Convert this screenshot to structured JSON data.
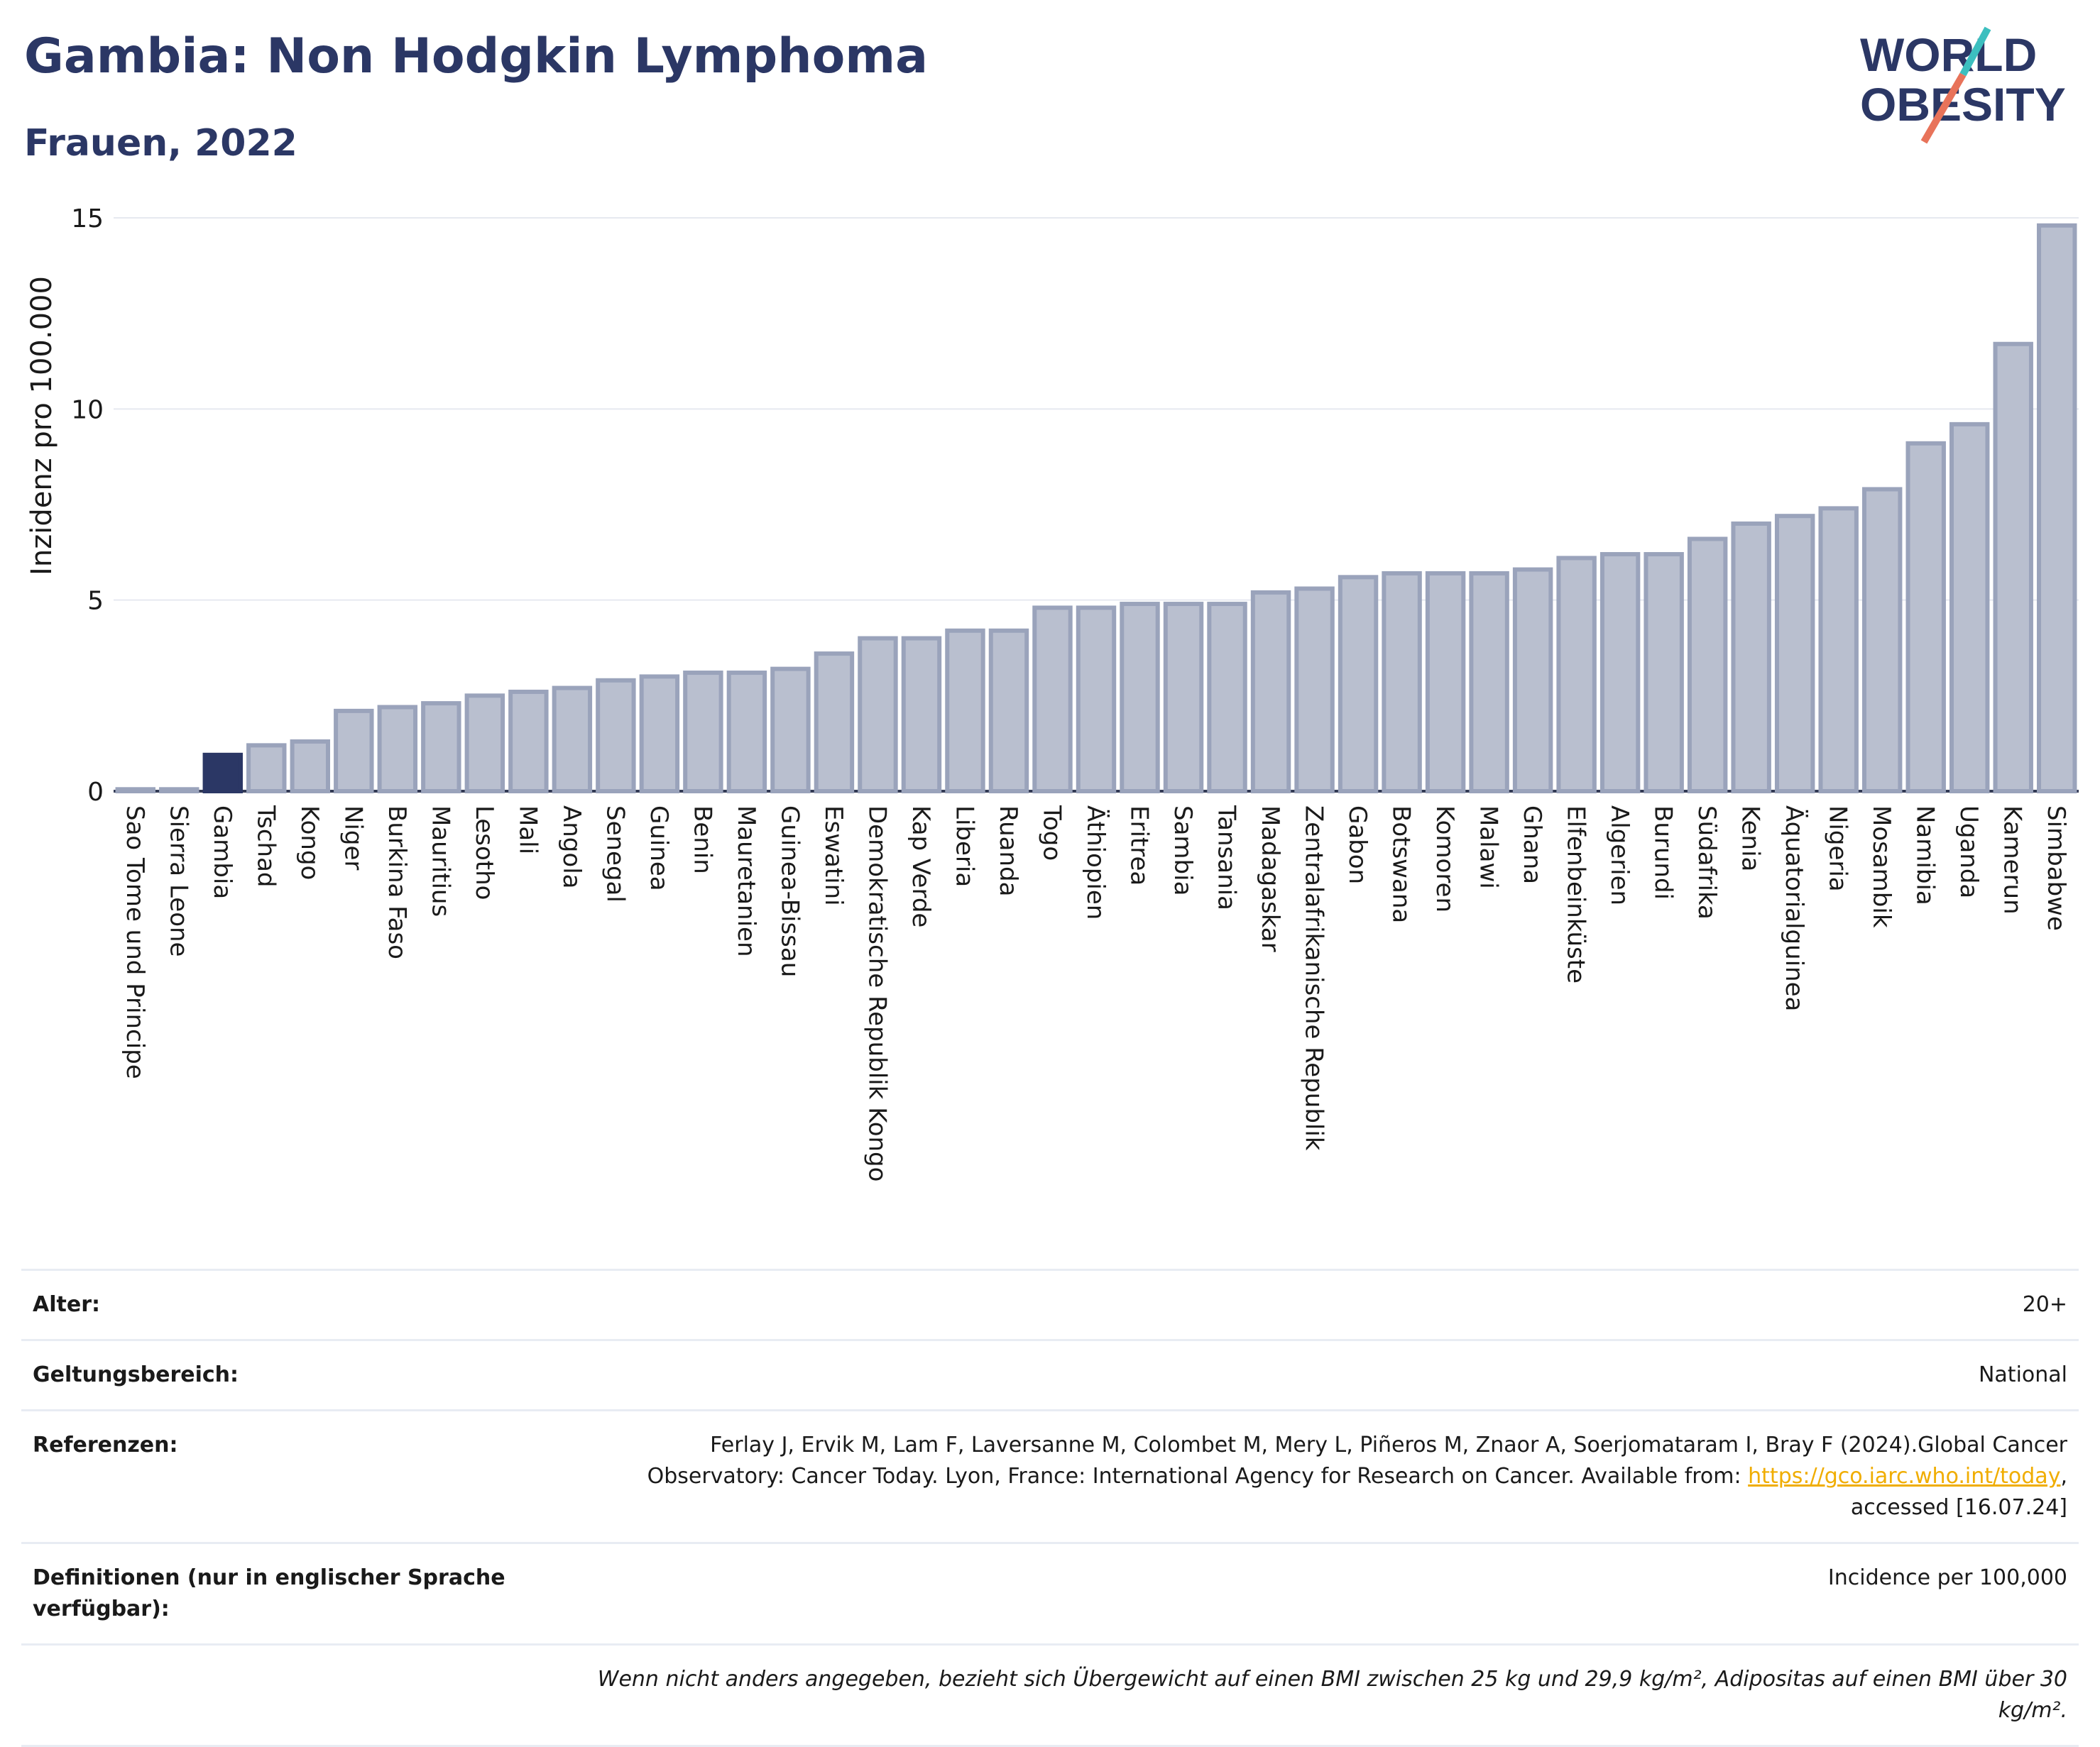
{
  "header": {
    "title": "Gambia: Non Hodgkin Lymphoma",
    "subtitle": "Frauen, 2022"
  },
  "logo": {
    "line1": "WORLD",
    "line2": "OBESITY"
  },
  "chart_data": {
    "type": "bar",
    "title": "Gambia: Non Hodgkin Lymphoma",
    "subtitle": "Frauen, 2022",
    "ylabel": "Inzidenz pro 100.000",
    "ylim": [
      0,
      15
    ],
    "yticks": [
      0,
      5,
      10,
      15
    ],
    "grid": true,
    "highlight": "Gambia",
    "colors": {
      "bar": "#b9bfcf",
      "bar_border": "#9aa3bb",
      "highlight": "#2b3765"
    },
    "categories": [
      "Sao Tome und Principe",
      "Sierra Leone",
      "Gambia",
      "Tschad",
      "Kongo",
      "Niger",
      "Burkina Faso",
      "Mauritius",
      "Lesotho",
      "Mali",
      "Angola",
      "Senegal",
      "Guinea",
      "Benin",
      "Mauretanien",
      "Guinea-Bissau",
      "Eswatini",
      "Demokratische Republik Kongo",
      "Kap Verde",
      "Liberia",
      "Ruanda",
      "Togo",
      "Äthiopien",
      "Eritrea",
      "Sambia",
      "Tansania",
      "Madagaskar",
      "Zentralafrikanische Republik",
      "Gabon",
      "Botswana",
      "Komoren",
      "Malawi",
      "Ghana",
      "Elfenbeinküste",
      "Algerien",
      "Burundi",
      "Südafrika",
      "Kenia",
      "Äquatorialguinea",
      "Nigeria",
      "Mosambik",
      "Namibia",
      "Uganda",
      "Kamerun",
      "Simbabwe"
    ],
    "values": [
      0.05,
      0.05,
      0.95,
      1.2,
      1.3,
      2.1,
      2.2,
      2.3,
      2.5,
      2.6,
      2.7,
      2.9,
      3.0,
      3.1,
      3.1,
      3.2,
      3.6,
      4.0,
      4.0,
      4.2,
      4.2,
      4.8,
      4.8,
      4.9,
      4.9,
      4.9,
      5.2,
      5.3,
      5.6,
      5.7,
      5.7,
      5.7,
      5.8,
      6.1,
      6.2,
      6.2,
      6.6,
      7.0,
      7.2,
      7.4,
      7.9,
      9.1,
      9.6,
      11.7,
      14.8
    ]
  },
  "meta": {
    "age_label": "Alter:",
    "age_value": "20+",
    "scope_label": "Geltungsbereich:",
    "scope_value": "National",
    "refs_label": "Referenzen:",
    "refs_text": "Ferlay J, Ervik M, Lam F, Laversanne M, Colombet M, Mery L, Piñeros M, Znaor A, Soerjomataram I, Bray F (2024).Global Cancer Observatory: Cancer Today. Lyon, France: International Agency for Research on Cancer. Available from: ",
    "refs_link": "https://gco.iarc.who.int/today",
    "refs_after": ", accessed [16.07.24]",
    "def_label": "Definitionen (nur in englischer Sprache verfügbar):",
    "def_value": "Incidence per 100,000",
    "note": "Wenn nicht anders angegeben, bezieht sich Übergewicht auf einen BMI zwischen 25 kg und 29,9 kg/m², Adipositas auf einen BMI über 30 kg/m²."
  }
}
